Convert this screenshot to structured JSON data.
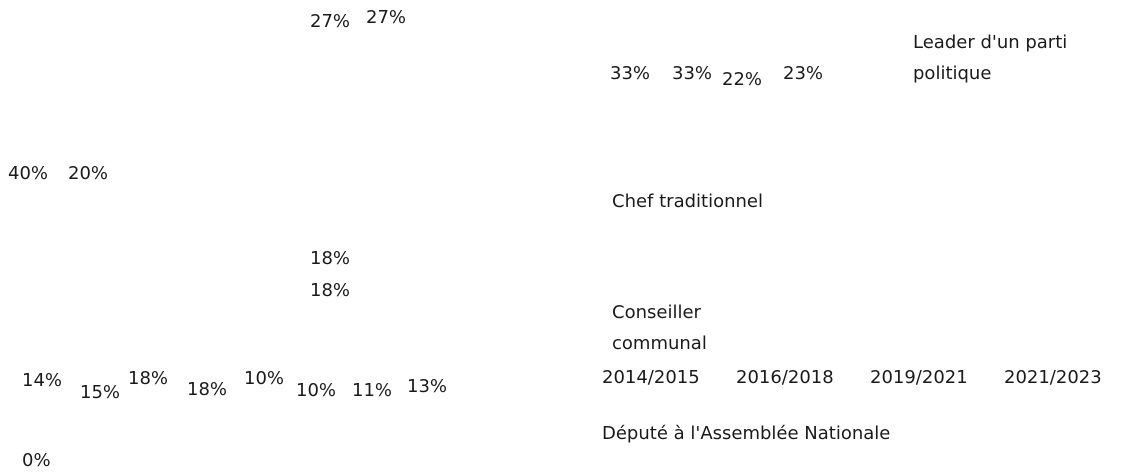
{
  "labels": [
    "27%",
    "27%",
    "33%",
    "33%",
    "22%",
    "23%",
    "40%",
    "20%",
    "18%",
    "18%",
    "14%",
    "15%",
    "18%",
    "18%",
    "10%",
    "10%",
    "11%",
    "13%",
    "0%"
  ],
  "legend": [
    "Leader d'un parti politique",
    "Chef traditionnel",
    "Conseiller communal",
    "Député à l'Assemblée Nationale"
  ],
  "categories": [
    "2014/2015",
    "2016/2018",
    "2019/2021",
    "2021/2023"
  ]
}
